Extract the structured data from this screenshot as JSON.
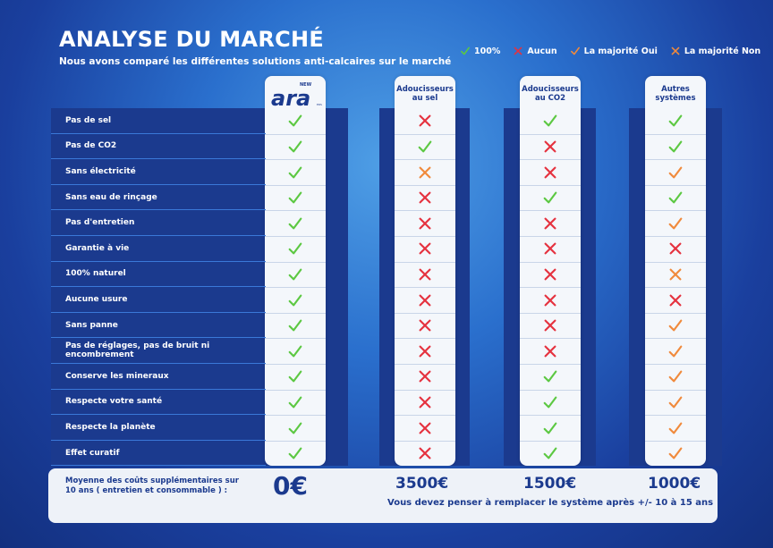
{
  "header": {
    "title": "ANALYSE DU MARCHÉ",
    "subtitle": "Nous avons comparé les différentes solutions anti-calcaires sur le marché"
  },
  "legend": [
    {
      "icon": "check-green-icon",
      "label": "100%"
    },
    {
      "icon": "cross-red-icon",
      "label": "Aucun"
    },
    {
      "icon": "check-orange-icon",
      "label": "La majorité Oui"
    },
    {
      "icon": "cross-orange-icon",
      "label": "La majorité Non"
    }
  ],
  "colors": {
    "green": "#5cc842",
    "red": "#e5323f",
    "orange": "#f08a3c",
    "navy": "#1b3a8e"
  },
  "columns": [
    {
      "key": "ara",
      "logo_top": "NEW",
      "logo_text": "ara",
      "logo_sub": "ERS"
    },
    {
      "key": "sel",
      "label_line1": "Adoucisseurs",
      "label_line2": "au sel"
    },
    {
      "key": "co2",
      "label_line1": "Adoucisseurs",
      "label_line2": "au CO2"
    },
    {
      "key": "autres",
      "label_line1": "Autres",
      "label_line2": "systèmes"
    }
  ],
  "rows": [
    {
      "label": "Pas de sel",
      "marks": [
        "check-green",
        "cross-red",
        "check-green",
        "check-green"
      ]
    },
    {
      "label": "Pas de CO2",
      "marks": [
        "check-green",
        "check-green",
        "cross-red",
        "check-green"
      ]
    },
    {
      "label": "Sans électricité",
      "marks": [
        "check-green",
        "cross-orange",
        "cross-red",
        "check-orange"
      ]
    },
    {
      "label": "Sans eau de rinçage",
      "marks": [
        "check-green",
        "cross-red",
        "check-green",
        "check-green"
      ]
    },
    {
      "label": "Pas d'entretien",
      "marks": [
        "check-green",
        "cross-red",
        "cross-red",
        "check-orange"
      ]
    },
    {
      "label": "Garantie à vie",
      "marks": [
        "check-green",
        "cross-red",
        "cross-red",
        "cross-red"
      ]
    },
    {
      "label": "100% naturel",
      "marks": [
        "check-green",
        "cross-red",
        "cross-red",
        "cross-orange"
      ]
    },
    {
      "label": "Aucune usure",
      "marks": [
        "check-green",
        "cross-red",
        "cross-red",
        "cross-red"
      ]
    },
    {
      "label": "Sans panne",
      "marks": [
        "check-green",
        "cross-red",
        "cross-red",
        "check-orange"
      ]
    },
    {
      "label": "Pas de réglages, pas de bruit ni encombrement",
      "marks": [
        "check-green",
        "cross-red",
        "cross-red",
        "check-orange"
      ]
    },
    {
      "label": "Conserve les mineraux",
      "marks": [
        "check-green",
        "cross-red",
        "check-green",
        "check-orange"
      ]
    },
    {
      "label": "Respecte votre santé",
      "marks": [
        "check-green",
        "cross-red",
        "check-green",
        "check-orange"
      ]
    },
    {
      "label": "Respecte la planète",
      "marks": [
        "check-green",
        "cross-red",
        "check-green",
        "check-orange"
      ]
    },
    {
      "label": "Effet curatif",
      "marks": [
        "check-green",
        "cross-red",
        "check-green",
        "check-orange"
      ]
    }
  ],
  "costs": {
    "label": "Moyenne des coûts supplémentaires sur 10 ans ( entretien et consommable ) :",
    "ara": "0€",
    "sel": "3500€",
    "co2": "1500€",
    "autres": "1000€",
    "note": "Vous devez penser à remplacer le système après +/- 10 à 15 ans"
  }
}
